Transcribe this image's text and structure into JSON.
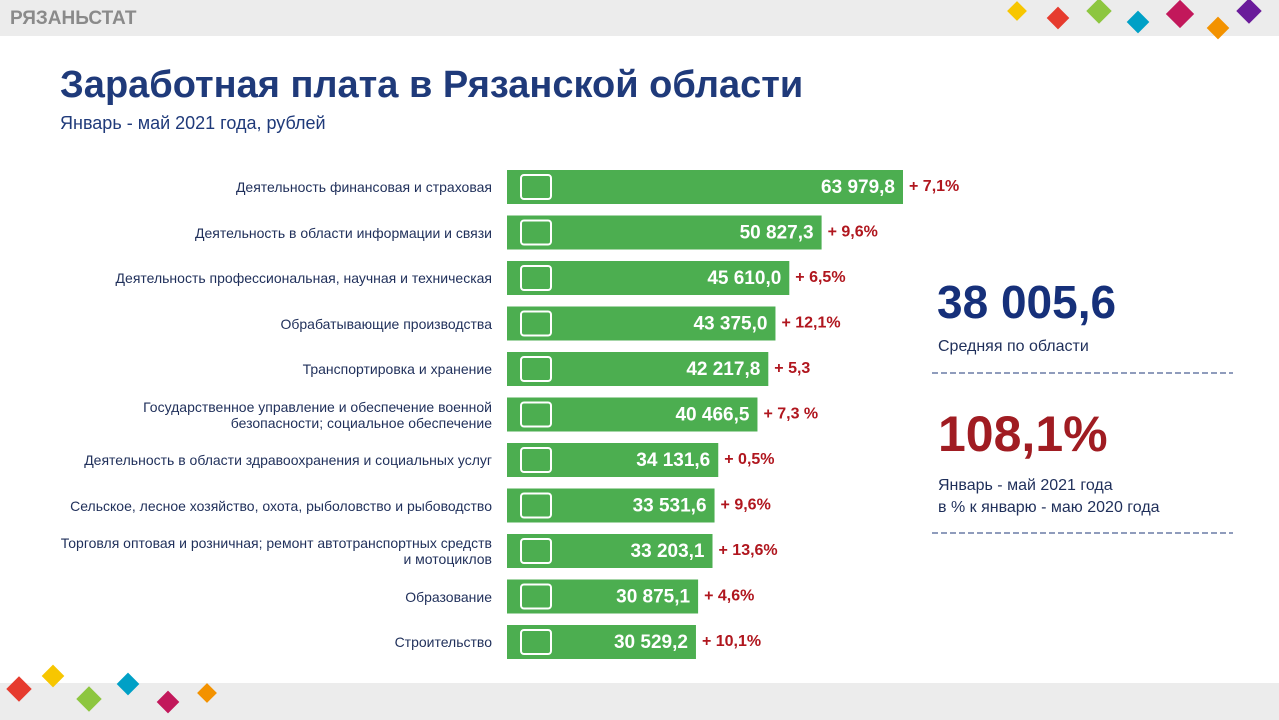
{
  "header": {
    "brand": "РЯЗАНЬСТАТ"
  },
  "chart_data": {
    "type": "barh",
    "title": "Заработная плата в Рязанской области",
    "subtitle": "Январь - май 2021 года, рублей",
    "color": "#4cae50",
    "categories": [
      "Деятельность финансовая и страховая",
      "Деятельность в области информации и связи",
      "Деятельность профессиональная, научная и техническая",
      "Обрабатывающие производства",
      "Транспортировка и хранение",
      "Государственное управление и обеспечение военной безопасности; социальное обеспечение",
      "Деятельность в области здравоохранения и социальных услуг",
      "Сельское, лесное хозяйство, охота, рыболовство и рыбоводство",
      "Торговля оптовая и розничная; ремонт автотранспортных средств и мотоциклов",
      "Образование",
      "Строительство"
    ],
    "values": [
      63979.8,
      50827.3,
      45610.0,
      43375.0,
      42217.8,
      40466.5,
      34131.6,
      33531.6,
      33203.1,
      30875.1,
      30529.2
    ],
    "value_labels": [
      "63 979,8",
      "50 827,3",
      "45 610,0",
      "43 375,0",
      "42 217,8",
      "40 466,5",
      "34 131,6",
      "33 531,6",
      "33 203,1",
      "30 875,1",
      "30 529,2"
    ],
    "changes": [
      "+ 7,1%",
      "+ 9,6%",
      "+ 6,5%",
      "+ 12,1%",
      "+ 5,3",
      "+ 7,3 %",
      "+ 0,5%",
      "+ 9,6%",
      "+ 13,6%",
      "+ 4,6%",
      "+ 10,1%"
    ]
  },
  "summary": {
    "average": "38 005,6",
    "average_label": "Средняя по области",
    "index": "108,1%",
    "index_label": [
      "Январь - май 2021 года",
      "в % к январю - маю 2020 года"
    ]
  }
}
